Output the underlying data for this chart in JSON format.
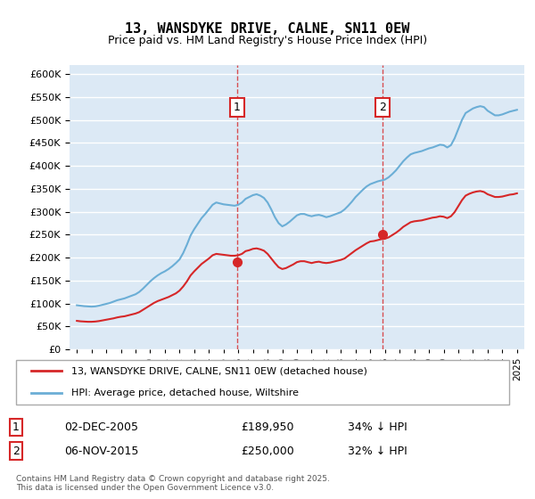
{
  "title": "13, WANSDYKE DRIVE, CALNE, SN11 0EW",
  "subtitle": "Price paid vs. HM Land Registry's House Price Index (HPI)",
  "hpi_color": "#6baed6",
  "price_color": "#d62728",
  "background_color": "#dce9f5",
  "plot_bg_color": "#dce9f5",
  "ylim": [
    0,
    620000
  ],
  "yticks": [
    0,
    50000,
    100000,
    150000,
    200000,
    250000,
    300000,
    350000,
    400000,
    450000,
    500000,
    550000,
    600000
  ],
  "transactions": [
    {
      "date": "2005-12-02",
      "price": 189950,
      "label": "1"
    },
    {
      "date": "2015-11-06",
      "price": 250000,
      "label": "2"
    }
  ],
  "legend_entries": [
    "13, WANSDYKE DRIVE, CALNE, SN11 0EW (detached house)",
    "HPI: Average price, detached house, Wiltshire"
  ],
  "annotation_1": {
    "label": "1",
    "date": "02-DEC-2005",
    "price": "£189,950",
    "note": "34% ↓ HPI"
  },
  "annotation_2": {
    "label": "2",
    "date": "06-NOV-2015",
    "price": "£250,000",
    "note": "32% ↓ HPI"
  },
  "footer": "Contains HM Land Registry data © Crown copyright and database right 2025.\nThis data is licensed under the Open Government Licence v3.0.",
  "hpi_data": {
    "years": [
      1995.0,
      1995.25,
      1995.5,
      1995.75,
      1996.0,
      1996.25,
      1996.5,
      1996.75,
      1997.0,
      1997.25,
      1997.5,
      1997.75,
      1998.0,
      1998.25,
      1998.5,
      1998.75,
      1999.0,
      1999.25,
      1999.5,
      1999.75,
      2000.0,
      2000.25,
      2000.5,
      2000.75,
      2001.0,
      2001.25,
      2001.5,
      2001.75,
      2002.0,
      2002.25,
      2002.5,
      2002.75,
      2003.0,
      2003.25,
      2003.5,
      2003.75,
      2004.0,
      2004.25,
      2004.5,
      2004.75,
      2005.0,
      2005.25,
      2005.5,
      2005.75,
      2006.0,
      2006.25,
      2006.5,
      2006.75,
      2007.0,
      2007.25,
      2007.5,
      2007.75,
      2008.0,
      2008.25,
      2008.5,
      2008.75,
      2009.0,
      2009.25,
      2009.5,
      2009.75,
      2010.0,
      2010.25,
      2010.5,
      2010.75,
      2011.0,
      2011.25,
      2011.5,
      2011.75,
      2012.0,
      2012.25,
      2012.5,
      2012.75,
      2013.0,
      2013.25,
      2013.5,
      2013.75,
      2014.0,
      2014.25,
      2014.5,
      2014.75,
      2015.0,
      2015.25,
      2015.5,
      2015.75,
      2016.0,
      2016.25,
      2016.5,
      2016.75,
      2017.0,
      2017.25,
      2017.5,
      2017.75,
      2018.0,
      2018.25,
      2018.5,
      2018.75,
      2019.0,
      2019.25,
      2019.5,
      2019.75,
      2020.0,
      2020.25,
      2020.5,
      2020.75,
      2021.0,
      2021.25,
      2021.5,
      2021.75,
      2022.0,
      2022.25,
      2022.5,
      2022.75,
      2023.0,
      2023.25,
      2023.5,
      2023.75,
      2024.0,
      2024.25,
      2024.5,
      2024.75,
      2025.0
    ],
    "values": [
      96000,
      95000,
      94000,
      93500,
      93000,
      93500,
      95000,
      97000,
      99000,
      101000,
      104000,
      107000,
      109000,
      111000,
      114000,
      117000,
      120000,
      125000,
      132000,
      140000,
      148000,
      155000,
      161000,
      166000,
      170000,
      175000,
      181000,
      188000,
      196000,
      210000,
      228000,
      248000,
      262000,
      274000,
      286000,
      295000,
      305000,
      315000,
      320000,
      318000,
      316000,
      315000,
      314000,
      313000,
      315000,
      320000,
      328000,
      332000,
      336000,
      338000,
      335000,
      330000,
      320000,
      305000,
      288000,
      275000,
      268000,
      272000,
      278000,
      285000,
      292000,
      295000,
      295000,
      292000,
      290000,
      292000,
      293000,
      291000,
      288000,
      290000,
      293000,
      296000,
      299000,
      305000,
      313000,
      322000,
      332000,
      340000,
      348000,
      355000,
      360000,
      363000,
      366000,
      368000,
      370000,
      375000,
      382000,
      390000,
      400000,
      410000,
      418000,
      425000,
      428000,
      430000,
      432000,
      435000,
      438000,
      440000,
      443000,
      446000,
      445000,
      440000,
      445000,
      460000,
      480000,
      500000,
      515000,
      520000,
      525000,
      528000,
      530000,
      528000,
      520000,
      515000,
      510000,
      510000,
      512000,
      515000,
      518000,
      520000,
      522000
    ]
  },
  "price_hpi_data": {
    "years": [
      1995.0,
      1995.25,
      1995.5,
      1995.75,
      1996.0,
      1996.25,
      1996.5,
      1996.75,
      1997.0,
      1997.25,
      1997.5,
      1997.75,
      1998.0,
      1998.25,
      1998.5,
      1998.75,
      1999.0,
      1999.25,
      1999.5,
      1999.75,
      2000.0,
      2000.25,
      2000.5,
      2000.75,
      2001.0,
      2001.25,
      2001.5,
      2001.75,
      2002.0,
      2002.25,
      2002.5,
      2002.75,
      2003.0,
      2003.25,
      2003.5,
      2003.75,
      2004.0,
      2004.25,
      2004.5,
      2004.75,
      2005.0,
      2005.25,
      2005.5,
      2005.75,
      2006.0,
      2006.25,
      2006.5,
      2006.75,
      2007.0,
      2007.25,
      2007.5,
      2007.75,
      2008.0,
      2008.25,
      2008.5,
      2008.75,
      2009.0,
      2009.25,
      2009.5,
      2009.75,
      2010.0,
      2010.25,
      2010.5,
      2010.75,
      2011.0,
      2011.25,
      2011.5,
      2011.75,
      2012.0,
      2012.25,
      2012.5,
      2012.75,
      2013.0,
      2013.25,
      2013.5,
      2013.75,
      2014.0,
      2014.25,
      2014.5,
      2014.75,
      2015.0,
      2015.25,
      2015.5,
      2015.75,
      2016.0,
      2016.25,
      2016.5,
      2016.75,
      2017.0,
      2017.25,
      2017.5,
      2017.75,
      2018.0,
      2018.25,
      2018.5,
      2018.75,
      2019.0,
      2019.25,
      2019.5,
      2019.75,
      2020.0,
      2020.25,
      2020.5,
      2020.75,
      2021.0,
      2021.25,
      2021.5,
      2021.75,
      2022.0,
      2022.25,
      2022.5,
      2022.75,
      2023.0,
      2023.25,
      2023.5,
      2023.75,
      2024.0,
      2024.25,
      2024.5,
      2024.75,
      2025.0
    ],
    "values": [
      62000,
      61000,
      60500,
      60000,
      60000,
      60500,
      61500,
      63000,
      64500,
      66000,
      67500,
      69500,
      71000,
      72000,
      74000,
      76000,
      78000,
      81000,
      86000,
      91000,
      96000,
      101000,
      105000,
      108000,
      111000,
      114000,
      118000,
      122000,
      128000,
      137000,
      148000,
      161000,
      170000,
      178000,
      186000,
      192000,
      198000,
      205000,
      208000,
      207000,
      206000,
      205000,
      204000,
      204000,
      205000,
      208000,
      214000,
      216000,
      219000,
      220000,
      218000,
      215000,
      208000,
      198000,
      188000,
      179000,
      175000,
      177000,
      181000,
      185000,
      190000,
      192000,
      192000,
      190000,
      188000,
      190000,
      191000,
      189000,
      188000,
      189000,
      191000,
      193000,
      195000,
      198000,
      204000,
      210000,
      216000,
      221000,
      226000,
      231000,
      235000,
      236000,
      238000,
      240000,
      241000,
      244000,
      249000,
      254000,
      260000,
      267000,
      272000,
      277000,
      279000,
      280000,
      281000,
      283000,
      285000,
      287000,
      288000,
      290000,
      289000,
      286000,
      290000,
      299000,
      312000,
      325000,
      335000,
      339000,
      342000,
      344000,
      345000,
      343000,
      338000,
      335000,
      332000,
      332000,
      333000,
      335000,
      337000,
      338000,
      340000
    ]
  }
}
